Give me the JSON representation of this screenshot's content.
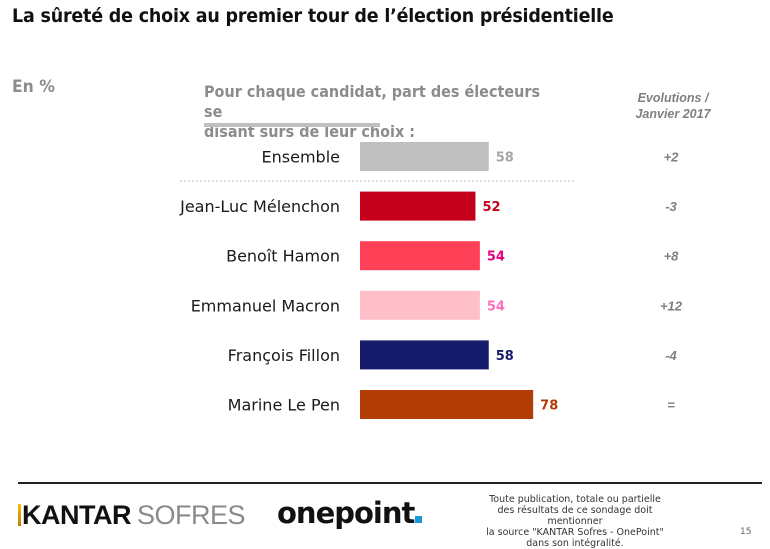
{
  "header": {
    "title": "La sûreté de choix au premier tour de l’élection présidentielle",
    "unit": "En %",
    "question_line1": "Pour chaque candidat, part des électeurs se",
    "question_line2": "disant sûrs de leur choix :",
    "evolution_header_line1": "Evolutions /",
    "evolution_header_line2": "Janvier 2017"
  },
  "chart_data": {
    "type": "bar",
    "orientation": "horizontal",
    "title": "La sûreté de choix au premier tour de l’élection présidentielle",
    "subtitle": "Pour chaque candidat, part des électeurs se disant sûrs de leur choix :",
    "xlabel": "",
    "ylabel": "En %",
    "xlim": [
      0,
      100
    ],
    "grid": false,
    "categories": [
      "Ensemble",
      "Jean-Luc Mélenchon",
      "Benoît Hamon",
      "Emmanuel Macron",
      "François Fillon",
      "Marine Le Pen"
    ],
    "values": [
      58,
      52,
      54,
      54,
      58,
      78
    ],
    "bar_colors": [
      "#bfbfbf",
      "#c4001a",
      "#ff4158",
      "#ffbfc8",
      "#161c6b",
      "#b23c05"
    ],
    "label_colors": [
      "#a6a6a6",
      "#c4001a",
      "#e6007e",
      "#ff6fbf",
      "#161c6b",
      "#b23c05"
    ],
    "evolutions": [
      "+2",
      "-3",
      "+8",
      "+12",
      "-4",
      "="
    ],
    "evolution_header": "Evolutions / Janvier 2017",
    "separator_after_index": 0
  },
  "footer": {
    "logo_kantar_1": "KANTAR",
    "logo_kantar_2": "SOFRES",
    "logo_onepoint": "onepoint",
    "disclaimer_lines": [
      "Toute publication, totale ou partielle",
      "des résultats de ce sondage doit mentionner",
      "la source \"KANTAR Sofres - OnePoint\"",
      "dans son intégralité."
    ],
    "page_number": "15"
  }
}
